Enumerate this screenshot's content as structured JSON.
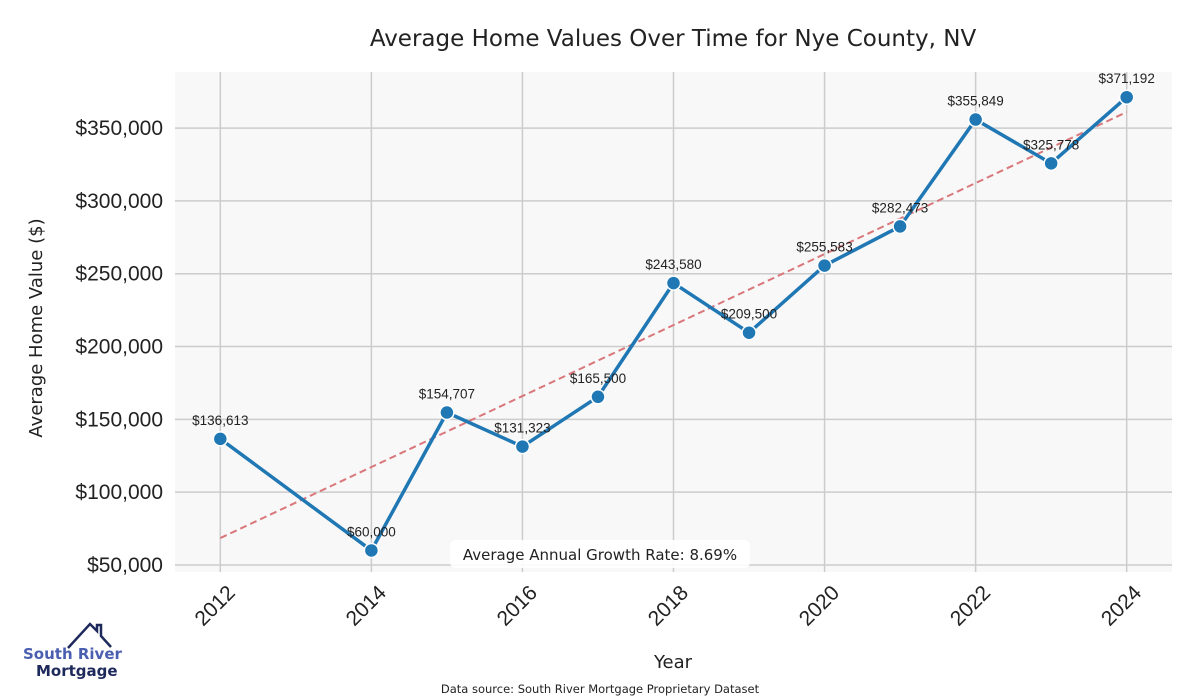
{
  "chart_data": {
    "type": "line",
    "title": "Average Home Values Over Time for Nye County, NV",
    "xlabel": "Year",
    "ylabel": "Average Home Value ($)",
    "x": [
      2012,
      2014,
      2015,
      2016,
      2017,
      2018,
      2019,
      2020,
      2021,
      2022,
      2023,
      2024
    ],
    "series": [
      {
        "values": [
          136613,
          60000,
          154707,
          131323,
          165500,
          243580,
          209500,
          255583,
          282473,
          355849,
          325778,
          371192
        ],
        "color": "#1f77b4"
      }
    ],
    "data_labels": [
      "$136,613",
      "$60,000",
      "$154,707",
      "$131,323",
      "$165,500",
      "$243,580",
      "$209,500",
      "$255,583",
      "$282,473",
      "$355,849",
      "$325,778",
      "$371,192"
    ],
    "trendline": {
      "style": "dashed",
      "color": "#d9777b",
      "x": [
        2012,
        2024
      ],
      "y": [
        68500,
        361000
      ]
    },
    "xticks": [
      "2012",
      "2014",
      "2016",
      "2018",
      "2020",
      "2022",
      "2024"
    ],
    "yticks": [
      "$50,000",
      "$100,000",
      "$150,000",
      "$200,000",
      "$250,000",
      "$300,000",
      "$350,000"
    ],
    "ytick_values": [
      50000,
      100000,
      150000,
      200000,
      250000,
      300000,
      350000
    ],
    "xtick_values": [
      2012,
      2014,
      2016,
      2018,
      2020,
      2022,
      2024
    ],
    "xlim": [
      2011.4,
      2024.6
    ],
    "ylim": [
      45200,
      388500
    ],
    "grid": true,
    "background": "#f8f8f8",
    "annotation": "Average Annual Growth Rate: 8.69%"
  },
  "footer": {
    "source": "Data source: South River Mortgage Proprietary Dataset",
    "logo_line1": "South River",
    "logo_line2": "Mortgage"
  }
}
